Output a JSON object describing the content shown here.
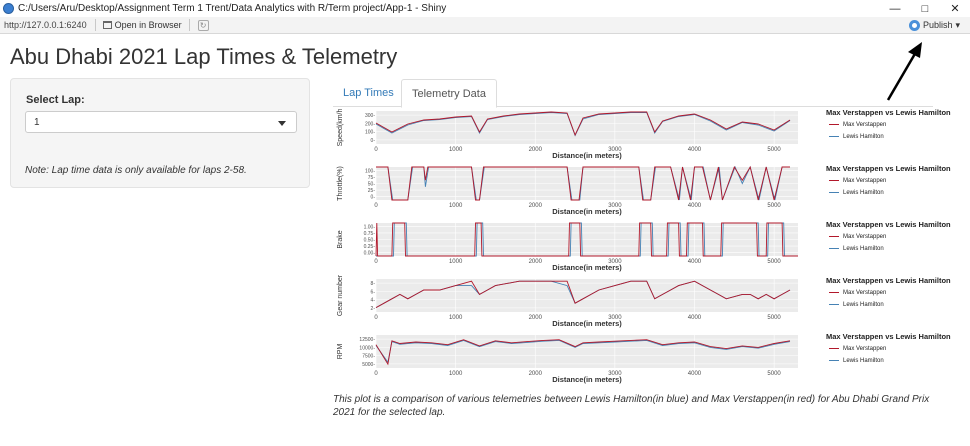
{
  "window": {
    "title": "C:/Users/Aru/Desktop/Assignment Term 1 Trent/Data Analytics with R/Term project/App-1 - Shiny",
    "minimize": "—",
    "restore": "□",
    "close": "✕"
  },
  "toolbar": {
    "url": "http://127.0.0.1:6240",
    "open_in_browser": "Open in Browser",
    "publish": "Publish",
    "publish_caret": "▾"
  },
  "page": {
    "title": "Abu Dhabi 2021 Lap Times & Telemetry"
  },
  "sidebar": {
    "select_label": "Select Lap:",
    "select_value": "1",
    "note": "Note: Lap time data is only available for laps 2-58."
  },
  "tabs": [
    {
      "label": "Lap Times",
      "active": false
    },
    {
      "label": "Telemetry Data",
      "active": true
    }
  ],
  "colors": {
    "verstappen": "#b2182b",
    "hamilton": "#4682b4",
    "link": "#337ab7"
  },
  "legend": {
    "title": "Max Verstappen vs Lewis Hamilton",
    "items": [
      "Max Verstappen",
      "Lewis Hamilton"
    ]
  },
  "chart_data": [
    {
      "type": "line",
      "ylabel": "Speed(km/h",
      "xlabel": "Distance(in meters)",
      "xlim": [
        0,
        5300
      ],
      "x_ticks": [
        "0",
        "1000",
        "2000",
        "3000",
        "4000",
        "5000"
      ],
      "y_ticks": [
        "0-",
        "100-",
        "200-",
        "300-"
      ],
      "ylim": [
        0,
        330
      ],
      "series": [
        {
          "name": "Max Verstappen",
          "x": [
            0,
            200,
            400,
            600,
            800,
            1000,
            1200,
            1300,
            1400,
            1600,
            1800,
            2000,
            2200,
            2400,
            2500,
            2600,
            2800,
            3000,
            3200,
            3400,
            3500,
            3600,
            3800,
            4000,
            4200,
            4400,
            4600,
            4800,
            5000,
            5200
          ],
          "values": [
            210,
            120,
            200,
            240,
            250,
            270,
            280,
            120,
            250,
            280,
            300,
            310,
            320,
            310,
            90,
            260,
            300,
            310,
            320,
            320,
            120,
            230,
            280,
            300,
            240,
            150,
            220,
            200,
            140,
            240
          ]
        },
        {
          "name": "Lewis Hamilton",
          "x": [
            0,
            200,
            400,
            600,
            800,
            1000,
            1200,
            1300,
            1400,
            1600,
            1800,
            2000,
            2200,
            2400,
            2500,
            2600,
            2800,
            3000,
            3200,
            3400,
            3500,
            3600,
            3800,
            4000,
            4200,
            4400,
            4600,
            4800,
            5000,
            5200
          ],
          "values": [
            200,
            110,
            190,
            235,
            245,
            265,
            275,
            110,
            245,
            275,
            295,
            305,
            315,
            305,
            85,
            250,
            295,
            305,
            315,
            315,
            110,
            225,
            275,
            295,
            230,
            140,
            215,
            190,
            130,
            235
          ]
        }
      ]
    },
    {
      "type": "line",
      "ylabel": "Throttle(%)",
      "xlabel": "Distance(in meters)",
      "xlim": [
        0,
        5300
      ],
      "x_ticks": [
        "0",
        "1000",
        "2000",
        "3000",
        "4000",
        "5000"
      ],
      "y_ticks": [
        "0-",
        "25-",
        "50-",
        "75-",
        "100-"
      ],
      "ylim": [
        0,
        100
      ],
      "series": [
        {
          "name": "Max Verstappen",
          "x": [
            0,
            150,
            200,
            400,
            450,
            600,
            620,
            650,
            800,
            1200,
            1250,
            1300,
            1350,
            1400,
            2400,
            2450,
            2500,
            2550,
            2600,
            3300,
            3350,
            3450,
            3500,
            3700,
            3800,
            3850,
            3950,
            4000,
            4100,
            4200,
            4300,
            4350,
            4500,
            4600,
            4700,
            4800,
            4900,
            5000,
            5100,
            5200
          ],
          "values": [
            100,
            100,
            0,
            0,
            100,
            100,
            60,
            100,
            100,
            100,
            0,
            0,
            100,
            100,
            100,
            0,
            0,
            0,
            100,
            100,
            0,
            0,
            100,
            100,
            0,
            100,
            0,
            100,
            100,
            0,
            100,
            0,
            100,
            60,
            100,
            0,
            100,
            0,
            100,
            100
          ]
        },
        {
          "name": "Lewis Hamilton",
          "x": [
            0,
            150,
            210,
            400,
            460,
            600,
            620,
            660,
            800,
            1200,
            1260,
            1300,
            1360,
            1400,
            2400,
            2460,
            2500,
            2560,
            2600,
            3300,
            3360,
            3450,
            3510,
            3700,
            3810,
            3850,
            3960,
            4000,
            4110,
            4200,
            4310,
            4350,
            4510,
            4600,
            4700,
            4810,
            4900,
            5010,
            5100,
            5200
          ],
          "values": [
            100,
            100,
            0,
            0,
            100,
            100,
            40,
            100,
            100,
            100,
            0,
            0,
            100,
            100,
            100,
            0,
            0,
            0,
            100,
            100,
            0,
            0,
            100,
            100,
            0,
            100,
            0,
            100,
            100,
            0,
            100,
            0,
            100,
            50,
            100,
            0,
            100,
            0,
            100,
            100
          ]
        }
      ]
    },
    {
      "type": "line",
      "ylabel": "Brake",
      "xlabel": "Distance(in meters)",
      "xlim": [
        0,
        5300
      ],
      "x_ticks": [
        "0",
        "1000",
        "2000",
        "3000",
        "4000",
        "5000"
      ],
      "y_ticks": [
        "0.00-",
        "0.25-",
        "0.50-",
        "0.75-",
        "1.00-"
      ],
      "ylim": [
        0,
        1
      ],
      "series": [
        {
          "name": "Max Verstappen",
          "x": [
            0,
            10,
            20,
            200,
            210,
            360,
            370,
            1240,
            1250,
            1320,
            1330,
            2420,
            2430,
            2560,
            2570,
            3300,
            3310,
            3450,
            3460,
            3650,
            3660,
            3800,
            3810,
            3900,
            3910,
            4100,
            4110,
            4330,
            4340,
            4780,
            4790,
            4900,
            4910,
            5100,
            5110,
            5300
          ],
          "values": [
            0,
            1,
            0,
            0,
            1,
            1,
            0,
            0,
            1,
            1,
            0,
            0,
            1,
            1,
            0,
            0,
            1,
            1,
            0,
            0,
            1,
            1,
            0,
            0,
            1,
            1,
            0,
            0,
            1,
            1,
            0,
            0,
            1,
            1,
            0,
            0
          ]
        },
        {
          "name": "Lewis Hamilton",
          "x": [
            0,
            220,
            230,
            380,
            390,
            1260,
            1270,
            1340,
            1350,
            2440,
            2450,
            2580,
            2590,
            3320,
            3330,
            3470,
            3480,
            3670,
            3680,
            3820,
            3830,
            3920,
            3930,
            4120,
            4130,
            4350,
            4360,
            4800,
            4810,
            4920,
            4930,
            5120,
            5130,
            5300
          ],
          "values": [
            0,
            0,
            1,
            1,
            0,
            0,
            1,
            1,
            0,
            0,
            1,
            1,
            0,
            0,
            1,
            1,
            0,
            0,
            1,
            1,
            0,
            0,
            1,
            1,
            0,
            0,
            1,
            1,
            0,
            0,
            1,
            1,
            0,
            0
          ]
        }
      ]
    },
    {
      "type": "line",
      "ylabel": "Gear number",
      "xlabel": "Distance(in meters)",
      "xlim": [
        0,
        5300
      ],
      "x_ticks": [
        "0",
        "1000",
        "2000",
        "3000",
        "4000",
        "5000"
      ],
      "y_ticks": [
        "2-",
        "4-",
        "6-",
        "8-"
      ],
      "ylim": [
        1,
        8.5
      ],
      "series": [
        {
          "name": "Max Verstappen",
          "x": [
            0,
            100,
            200,
            300,
            400,
            500,
            600,
            800,
            1000,
            1200,
            1300,
            1400,
            1500,
            1800,
            2000,
            2200,
            2400,
            2500,
            2600,
            2700,
            2800,
            3000,
            3200,
            3400,
            3500,
            3600,
            3700,
            3800,
            4000,
            4200,
            4300,
            4400,
            4600,
            4700,
            4800,
            4900,
            5000,
            5100,
            5200
          ],
          "values": [
            2,
            3,
            4,
            5,
            4,
            5,
            6,
            6,
            7,
            8,
            5,
            6,
            7,
            8,
            8,
            8,
            8,
            3,
            4,
            5,
            6,
            7,
            8,
            8,
            4,
            5,
            6,
            7,
            8,
            6,
            5,
            4,
            5,
            5,
            4,
            5,
            4,
            5,
            6
          ]
        },
        {
          "name": "Lewis Hamilton",
          "x": [
            0,
            100,
            200,
            300,
            400,
            500,
            600,
            800,
            1000,
            1200,
            1300,
            1400,
            1500,
            1800,
            2000,
            2200,
            2400,
            2500,
            2600,
            2700,
            2800,
            3000,
            3200,
            3400,
            3500,
            3600,
            3700,
            3800,
            4000,
            4200,
            4300,
            4400,
            4600,
            4700,
            4800,
            4900,
            5000,
            5100,
            5200
          ],
          "values": [
            2,
            3,
            4,
            5,
            4,
            5,
            6,
            6,
            7,
            7,
            5,
            6,
            7,
            8,
            8,
            8,
            7,
            3,
            4,
            5,
            6,
            7,
            8,
            8,
            4,
            5,
            6,
            7,
            8,
            6,
            5,
            4,
            5,
            5,
            4,
            5,
            4,
            5,
            6
          ]
        }
      ]
    },
    {
      "type": "line",
      "ylabel": "RPM",
      "xlabel": "Distance(in meters)",
      "xlim": [
        0,
        5300
      ],
      "x_ticks": [
        "0",
        "1000",
        "2000",
        "3000",
        "4000",
        "5000"
      ],
      "y_ticks": [
        "5000-",
        "7500-",
        "10000-",
        "12500-"
      ],
      "ylim": [
        4500,
        13000
      ],
      "series": [
        {
          "name": "Max Verstappen",
          "x": [
            0,
            150,
            200,
            300,
            500,
            700,
            900,
            1100,
            1300,
            1500,
            1700,
            1900,
            2100,
            2300,
            2500,
            2600,
            2800,
            3000,
            3200,
            3400,
            3600,
            3800,
            4000,
            4200,
            4400,
            4600,
            4800,
            5000,
            5200
          ],
          "values": [
            10500,
            5500,
            11500,
            10800,
            11200,
            11000,
            10500,
            11800,
            10200,
            11500,
            11000,
            11300,
            11600,
            11800,
            10000,
            11000,
            11200,
            11400,
            11600,
            11800,
            10500,
            11000,
            11200,
            10000,
            9500,
            10200,
            9800,
            10800,
            11500
          ]
        },
        {
          "name": "Lewis Hamilton",
          "x": [
            0,
            150,
            200,
            300,
            500,
            700,
            900,
            1100,
            1300,
            1500,
            1700,
            1900,
            2100,
            2300,
            2500,
            2600,
            2800,
            3000,
            3200,
            3400,
            3600,
            3800,
            4000,
            4200,
            4400,
            4600,
            4800,
            5000,
            5200
          ],
          "values": [
            10300,
            6000,
            11300,
            10600,
            11000,
            10800,
            10300,
            11600,
            10000,
            11300,
            10800,
            11100,
            11400,
            11600,
            9800,
            10800,
            11000,
            11200,
            11400,
            11600,
            10300,
            10800,
            11000,
            9800,
            9300,
            10000,
            9600,
            10600,
            11300
          ]
        }
      ]
    }
  ],
  "caption": "This plot is a comparison of various telemetries between Lewis Hamilton(in blue) and Max Verstappen(in red) for Abu Dhabi Grand Prix 2021 for the selected lap."
}
